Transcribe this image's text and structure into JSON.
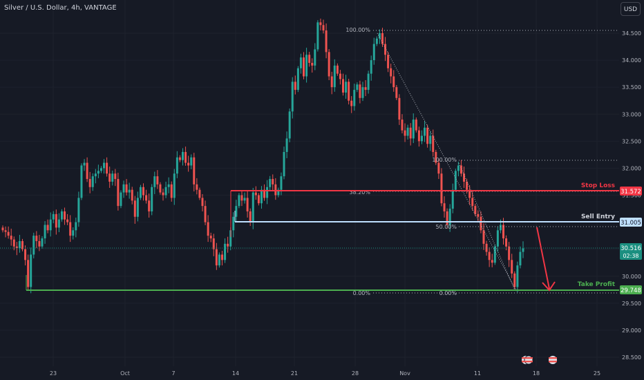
{
  "header": {
    "symbol": "Silver / U.S. Dollar, 4h, VANTAGE",
    "currency_button": "USD"
  },
  "colors": {
    "background": "#161a25",
    "up": "#26a69a",
    "down": "#ef5350",
    "stop_loss": "#f23645",
    "sell_entry": "#bfe0ff",
    "take_profit": "#4caf50",
    "fib": "#b2b5be",
    "current_price": "#1b8f80",
    "arrow": "#f23645"
  },
  "chart_data": {
    "type": "candlestick",
    "x_ticks": [
      "23",
      "Oct",
      "7",
      "14",
      "21",
      "28",
      "Nov",
      "11",
      "18",
      "25"
    ],
    "y_ticks": [
      "34.500",
      "34.000",
      "33.500",
      "33.000",
      "32.500",
      "32.000",
      "31.500",
      "31.000",
      "30.500",
      "30.000",
      "29.500",
      "29.000",
      "28.500"
    ],
    "ylim": [
      28.2,
      35.0
    ],
    "closes": [
      30.85,
      30.82,
      30.75,
      30.68,
      30.55,
      30.52,
      30.65,
      30.5,
      30.3,
      29.8,
      30.4,
      30.75,
      30.65,
      30.55,
      30.7,
      30.95,
      30.85,
      31.05,
      31.15,
      30.9,
      31.05,
      31.2,
      31.05,
      31.0,
      30.75,
      30.85,
      31.0,
      31.45,
      32.05,
      32.1,
      31.8,
      31.65,
      31.85,
      31.9,
      31.95,
      32.0,
      32.1,
      31.9,
      31.75,
      31.9,
      31.8,
      31.3,
      31.55,
      31.7,
      31.55,
      31.6,
      31.4,
      31.1,
      31.45,
      31.65,
      31.5,
      31.4,
      31.2,
      31.65,
      31.85,
      31.7,
      31.55,
      31.5,
      31.65,
      31.7,
      31.45,
      31.9,
      32.2,
      32.15,
      32.3,
      32.1,
      32.05,
      32.2,
      31.7,
      31.6,
      31.45,
      31.3,
      31.0,
      30.75,
      30.7,
      30.5,
      30.2,
      30.4,
      30.3,
      30.6,
      30.55,
      30.85,
      31.1,
      31.3,
      31.5,
      31.4,
      31.45,
      31.2,
      31.0,
      31.55,
      31.5,
      31.35,
      31.6,
      31.45,
      31.65,
      31.8,
      31.7,
      31.5,
      31.6,
      31.85,
      32.3,
      32.55,
      33.05,
      33.6,
      33.45,
      33.85,
      34.05,
      33.7,
      34.1,
      33.95,
      33.9,
      34.2,
      34.7,
      34.65,
      34.55,
      34.15,
      33.7,
      33.5,
      33.9,
      33.75,
      33.65,
      33.4,
      33.6,
      33.25,
      33.15,
      33.45,
      33.55,
      33.3,
      33.5,
      33.45,
      33.75,
      34.0,
      34.3,
      34.4,
      34.5,
      34.3,
      34.1,
      33.85,
      33.7,
      33.5,
      33.3,
      32.9,
      32.7,
      32.6,
      32.75,
      32.55,
      32.9,
      32.7,
      32.5,
      32.6,
      32.75,
      32.45,
      32.6,
      32.3,
      32.1,
      31.9,
      31.35,
      31.2,
      30.95,
      31.25,
      31.6,
      31.95,
      32.05,
      31.9,
      31.75,
      31.6,
      31.45,
      31.3,
      31.15,
      31.1,
      30.85,
      30.6,
      30.45,
      30.3,
      30.25,
      30.55,
      30.85,
      30.95,
      30.7,
      30.55,
      30.3,
      30.05,
      29.8,
      30.2,
      30.45,
      30.516
    ]
  },
  "fib": {
    "level_100": "100.00%",
    "level_38": "38.20%",
    "level_50": "50.00%",
    "level_0": "0.00%",
    "level_100_b": "100.00%",
    "level_0_b": "0.00%"
  },
  "levels": {
    "stop_loss": {
      "label": "Stop Loss",
      "price": "31.572"
    },
    "sell_entry": {
      "label": "Sell Entry",
      "price": "31.005"
    },
    "take_profit": {
      "label": "Take Profit",
      "price": "29.748"
    }
  },
  "current_price": {
    "price": "30.516",
    "countdown": "02:38"
  }
}
